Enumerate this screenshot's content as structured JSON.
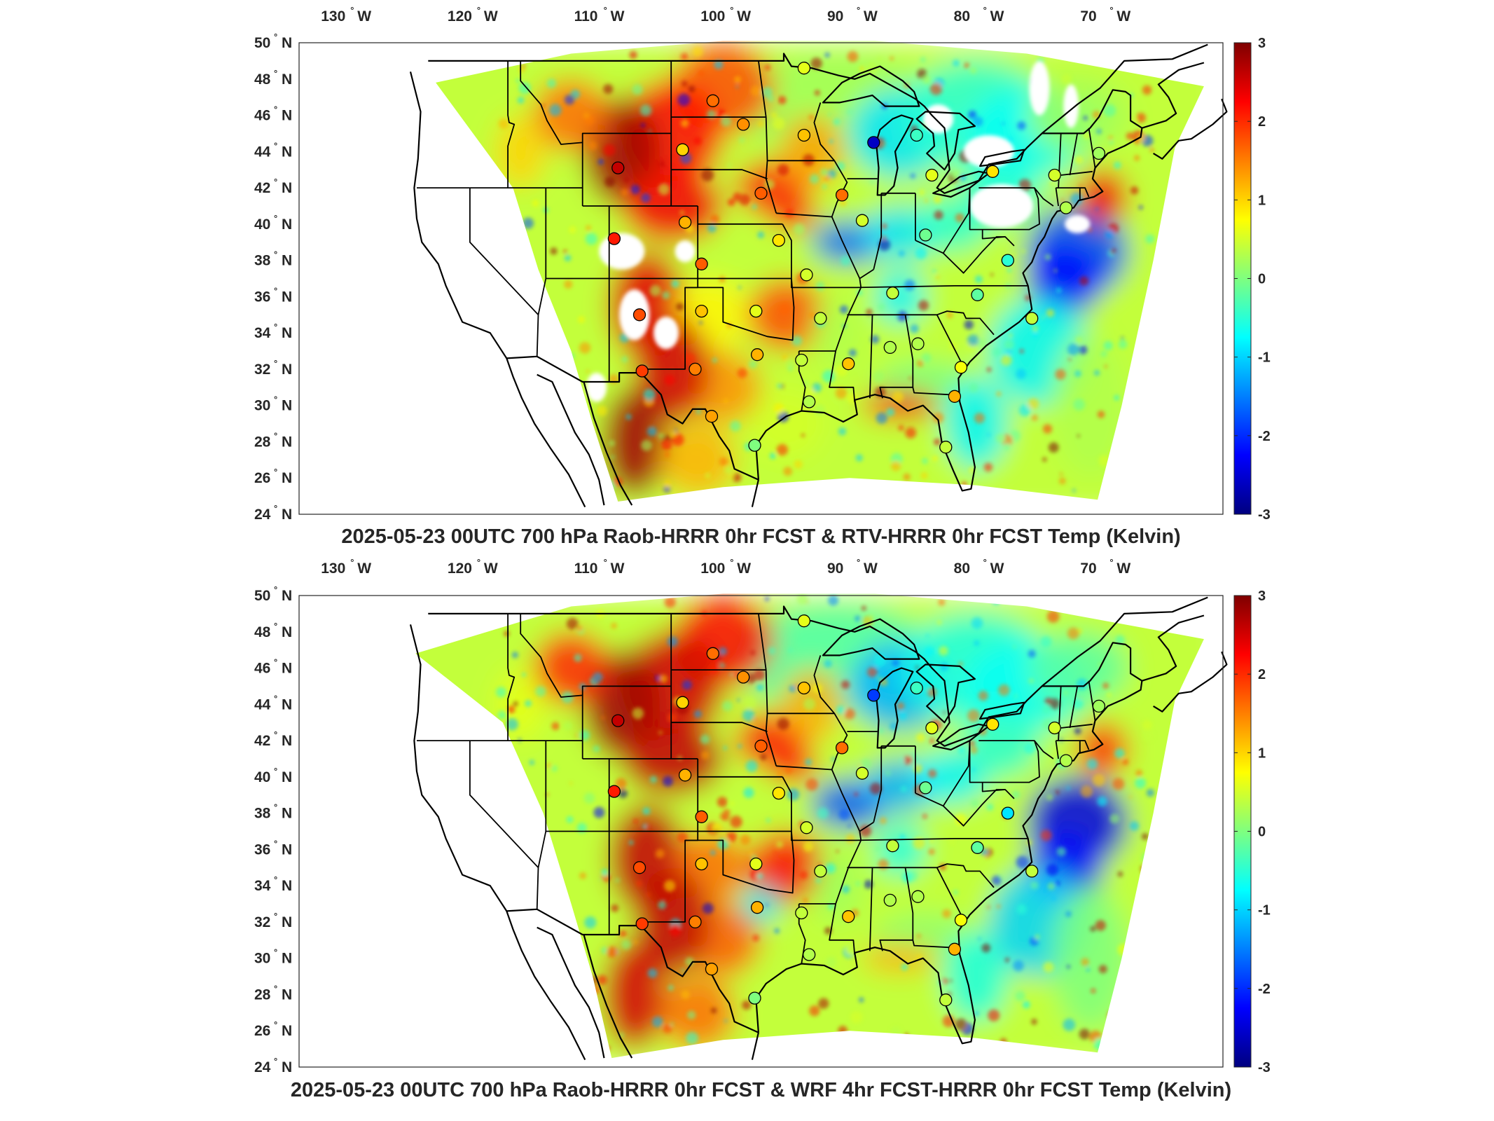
{
  "colorbar": {
    "min": -3,
    "max": 3,
    "ticks": [
      "3",
      "2",
      "1",
      "0",
      "-1",
      "-2",
      "-3"
    ],
    "colors": [
      "#00007f",
      "#0000ff",
      "#007fff",
      "#00ffff",
      "#7fff7f",
      "#ffff00",
      "#ff7f00",
      "#ff0000",
      "#7f0000"
    ]
  },
  "axes": {
    "lon_labels": [
      "130",
      "120",
      "110",
      "100",
      "90",
      "80",
      "70"
    ],
    "lon_hemisphere": "W",
    "lat_labels": [
      "50",
      "48",
      "46",
      "44",
      "42",
      "40",
      "38",
      "36",
      "34",
      "32",
      "30",
      "28",
      "26",
      "24"
    ],
    "lat_hemisphere": "N",
    "degree_symbol": "°"
  },
  "panels": [
    {
      "title": "2025-05-23 00UTC 700 hPa Raob-HRRR 0hr FCST & RTV-HRRR 0hr FCST Temp (Kelvin)"
    },
    {
      "title": "2025-05-23 00UTC 700 hPa Raob-HRRR 0hr FCST & WRF 4hr FCST-HRRR 0hr FCST Temp (Kelvin)"
    }
  ],
  "stations": [
    {
      "lon": -108.3,
      "lat": 43.1,
      "v1": 2.6,
      "v2": 2.6
    },
    {
      "lon": -103.2,
      "lat": 44.1,
      "v1": 1.0,
      "v2": 1.0
    },
    {
      "lon": -100.8,
      "lat": 46.8,
      "v1": 1.6,
      "v2": 1.6
    },
    {
      "lon": -98.4,
      "lat": 45.5,
      "v1": 1.4,
      "v2": 1.4
    },
    {
      "lon": -93.6,
      "lat": 48.6,
      "v1": 0.6,
      "v2": 0.6
    },
    {
      "lon": -93.6,
      "lat": 44.9,
      "v1": 1.1,
      "v2": 1.1
    },
    {
      "lon": -88.1,
      "lat": 44.5,
      "v1": -2.6,
      "v2": -1.9
    },
    {
      "lon": -84.7,
      "lat": 44.9,
      "v1": -0.4,
      "v2": -0.4
    },
    {
      "lon": -83.5,
      "lat": 42.7,
      "v1": 0.6,
      "v2": 0.6
    },
    {
      "lon": -78.7,
      "lat": 42.9,
      "v1": 0.9,
      "v2": 0.9
    },
    {
      "lon": -73.8,
      "lat": 42.7,
      "v1": 0.5,
      "v2": 0.5
    },
    {
      "lon": -70.3,
      "lat": 43.9,
      "v1": 0.2,
      "v2": 0.2
    },
    {
      "lon": -72.9,
      "lat": 40.9,
      "v1": 0.3,
      "v2": 0.3
    },
    {
      "lon": -90.6,
      "lat": 41.6,
      "v1": 1.6,
      "v2": 1.6
    },
    {
      "lon": -97.0,
      "lat": 41.7,
      "v1": 1.7,
      "v2": 1.7
    },
    {
      "lon": -103.0,
      "lat": 40.1,
      "v1": 1.2,
      "v2": 1.2
    },
    {
      "lon": -108.6,
      "lat": 39.2,
      "v1": 2.1,
      "v2": 2.1
    },
    {
      "lon": -101.7,
      "lat": 37.8,
      "v1": 1.7,
      "v2": 1.7
    },
    {
      "lon": -95.6,
      "lat": 39.1,
      "v1": 0.9,
      "v2": 0.9
    },
    {
      "lon": -89.0,
      "lat": 40.2,
      "v1": 0.5,
      "v2": 0.5
    },
    {
      "lon": -84.0,
      "lat": 39.4,
      "v1": -0.1,
      "v2": -0.1
    },
    {
      "lon": -77.5,
      "lat": 38.0,
      "v1": -0.5,
      "v2": -0.9
    },
    {
      "lon": -93.4,
      "lat": 37.2,
      "v1": 0.5,
      "v2": 0.5
    },
    {
      "lon": -86.6,
      "lat": 36.2,
      "v1": 0.4,
      "v2": 0.4
    },
    {
      "lon": -79.9,
      "lat": 36.1,
      "v1": -0.2,
      "v2": -0.2
    },
    {
      "lon": -75.6,
      "lat": 34.8,
      "v1": 0.4,
      "v2": 0.4
    },
    {
      "lon": -106.6,
      "lat": 35.0,
      "v1": 1.8,
      "v2": 1.8
    },
    {
      "lon": -101.7,
      "lat": 35.2,
      "v1": 1.1,
      "v2": 1.1
    },
    {
      "lon": -97.4,
      "lat": 35.2,
      "v1": 0.6,
      "v2": 0.6
    },
    {
      "lon": -92.3,
      "lat": 34.8,
      "v1": 0.4,
      "v2": 0.4
    },
    {
      "lon": -106.4,
      "lat": 31.9,
      "v1": 1.9,
      "v2": 1.9
    },
    {
      "lon": -102.2,
      "lat": 32.0,
      "v1": 1.5,
      "v2": 1.5
    },
    {
      "lon": -97.3,
      "lat": 32.8,
      "v1": 1.2,
      "v2": 1.2
    },
    {
      "lon": -93.8,
      "lat": 32.5,
      "v1": 0.4,
      "v2": 0.4
    },
    {
      "lon": -90.1,
      "lat": 32.3,
      "v1": 1.1,
      "v2": 1.1
    },
    {
      "lon": -86.8,
      "lat": 33.2,
      "v1": 0.3,
      "v2": 0.3
    },
    {
      "lon": -84.6,
      "lat": 33.4,
      "v1": 0.3,
      "v2": 0.3
    },
    {
      "lon": -81.2,
      "lat": 32.1,
      "v1": 0.7,
      "v2": 0.7
    },
    {
      "lon": -100.9,
      "lat": 29.4,
      "v1": 1.3,
      "v2": 1.3
    },
    {
      "lon": -97.5,
      "lat": 27.8,
      "v1": 0.0,
      "v2": 0.0
    },
    {
      "lon": -93.2,
      "lat": 30.2,
      "v1": 0.3,
      "v2": 0.3
    },
    {
      "lon": -81.7,
      "lat": 30.5,
      "v1": 1.2,
      "v2": 1.2
    },
    {
      "lon": -82.4,
      "lat": 27.7,
      "v1": 0.4,
      "v2": 0.4
    }
  ]
}
